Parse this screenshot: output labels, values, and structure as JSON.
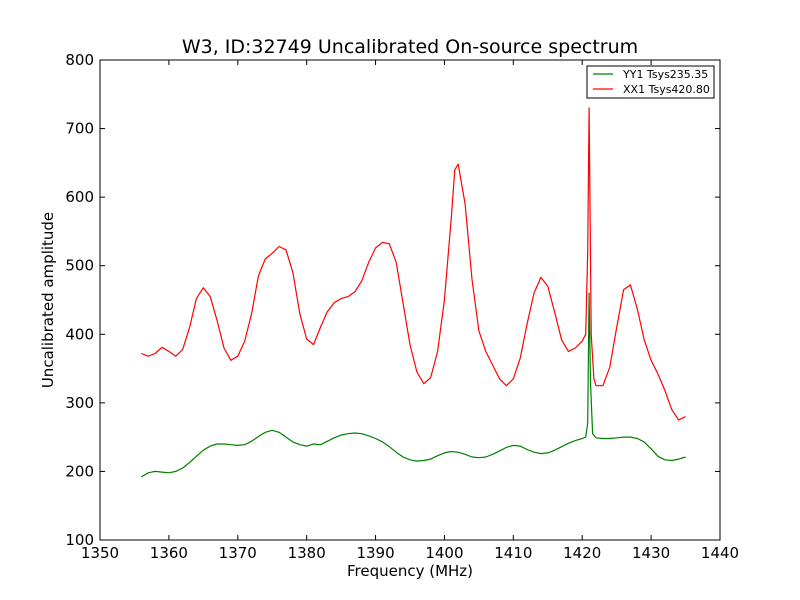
{
  "chart_data": {
    "type": "line",
    "title": "W3, ID:32749 Uncalibrated On-source spectrum",
    "xlabel": "Frequency (MHz)",
    "ylabel": "Uncalibrated amplitude",
    "xlim": [
      1350,
      1440
    ],
    "ylim": [
      100,
      800
    ],
    "xticks": [
      1350,
      1360,
      1370,
      1380,
      1390,
      1400,
      1410,
      1420,
      1430,
      1440
    ],
    "yticks": [
      100,
      200,
      300,
      400,
      500,
      600,
      700,
      800
    ],
    "grid": false,
    "legend_position": "top-right",
    "series": [
      {
        "name": "YY1 Tsys235.35",
        "color": "#008000",
        "x": [
          1356,
          1357,
          1358,
          1359,
          1360,
          1361,
          1362,
          1363,
          1364,
          1365,
          1366,
          1367,
          1368,
          1369,
          1370,
          1371,
          1372,
          1373,
          1374,
          1375,
          1376,
          1377,
          1378,
          1379,
          1380,
          1381,
          1382,
          1383,
          1384,
          1385,
          1386,
          1387,
          1388,
          1389,
          1390,
          1391,
          1392,
          1393,
          1394,
          1395,
          1396,
          1397,
          1398,
          1399,
          1400,
          1401,
          1402,
          1403,
          1404,
          1405,
          1406,
          1407,
          1408,
          1409,
          1410,
          1411,
          1412,
          1413,
          1414,
          1415,
          1416,
          1417,
          1418,
          1419,
          1420,
          1420.5,
          1420.8,
          1421.0,
          1421.2,
          1421.5,
          1422,
          1423,
          1424,
          1425,
          1426,
          1427,
          1428,
          1429,
          1430,
          1431,
          1432,
          1433,
          1434,
          1435
        ],
        "y": [
          192,
          198,
          200,
          199,
          198,
          200,
          205,
          213,
          222,
          231,
          237,
          240,
          240,
          239,
          238,
          239,
          244,
          251,
          257,
          260,
          257,
          250,
          243,
          239,
          237,
          240,
          239,
          244,
          249,
          253,
          255,
          256,
          255,
          252,
          248,
          243,
          236,
          228,
          221,
          217,
          215,
          216,
          218,
          223,
          227,
          229,
          228,
          225,
          221,
          220,
          221,
          225,
          230,
          235,
          238,
          237,
          232,
          228,
          226,
          227,
          231,
          236,
          241,
          245,
          248,
          250,
          270,
          460,
          330,
          255,
          249,
          248,
          248,
          249,
          250,
          250,
          248,
          243,
          233,
          222,
          217,
          216,
          218,
          221
        ]
      },
      {
        "name": "XX1 Tsys420.80",
        "color": "#ff0000",
        "x": [
          1356,
          1357,
          1358,
          1359,
          1360,
          1361,
          1362,
          1363,
          1364,
          1365,
          1366,
          1367,
          1368,
          1369,
          1370,
          1371,
          1372,
          1373,
          1374,
          1375,
          1376,
          1377,
          1378,
          1379,
          1380,
          1381,
          1382,
          1383,
          1384,
          1385,
          1386,
          1387,
          1388,
          1389,
          1390,
          1391,
          1392,
          1393,
          1394,
          1395,
          1396,
          1397,
          1398,
          1399,
          1400,
          1401,
          1401.5,
          1402,
          1403,
          1404,
          1405,
          1406,
          1407,
          1408,
          1409,
          1410,
          1411,
          1412,
          1413,
          1414,
          1415,
          1416,
          1417,
          1418,
          1419,
          1420,
          1420.5,
          1420.8,
          1421.0,
          1421.3,
          1421.7,
          1422,
          1423,
          1424,
          1425,
          1426,
          1427,
          1428,
          1429,
          1430,
          1431,
          1432,
          1433,
          1434,
          1435
        ],
        "y": [
          372,
          368,
          372,
          381,
          375,
          368,
          378,
          410,
          452,
          468,
          455,
          420,
          380,
          362,
          368,
          390,
          430,
          485,
          510,
          518,
          528,
          523,
          490,
          430,
          393,
          385,
          410,
          433,
          446,
          452,
          455,
          462,
          478,
          505,
          526,
          534,
          532,
          505,
          445,
          385,
          345,
          328,
          337,
          375,
          450,
          570,
          640,
          648,
          590,
          480,
          405,
          375,
          355,
          335,
          325,
          335,
          365,
          415,
          460,
          483,
          470,
          432,
          392,
          375,
          380,
          390,
          400,
          520,
          730,
          400,
          335,
          325,
          325,
          352,
          410,
          465,
          472,
          437,
          392,
          362,
          342,
          318,
          290,
          275,
          280
        ]
      }
    ]
  }
}
